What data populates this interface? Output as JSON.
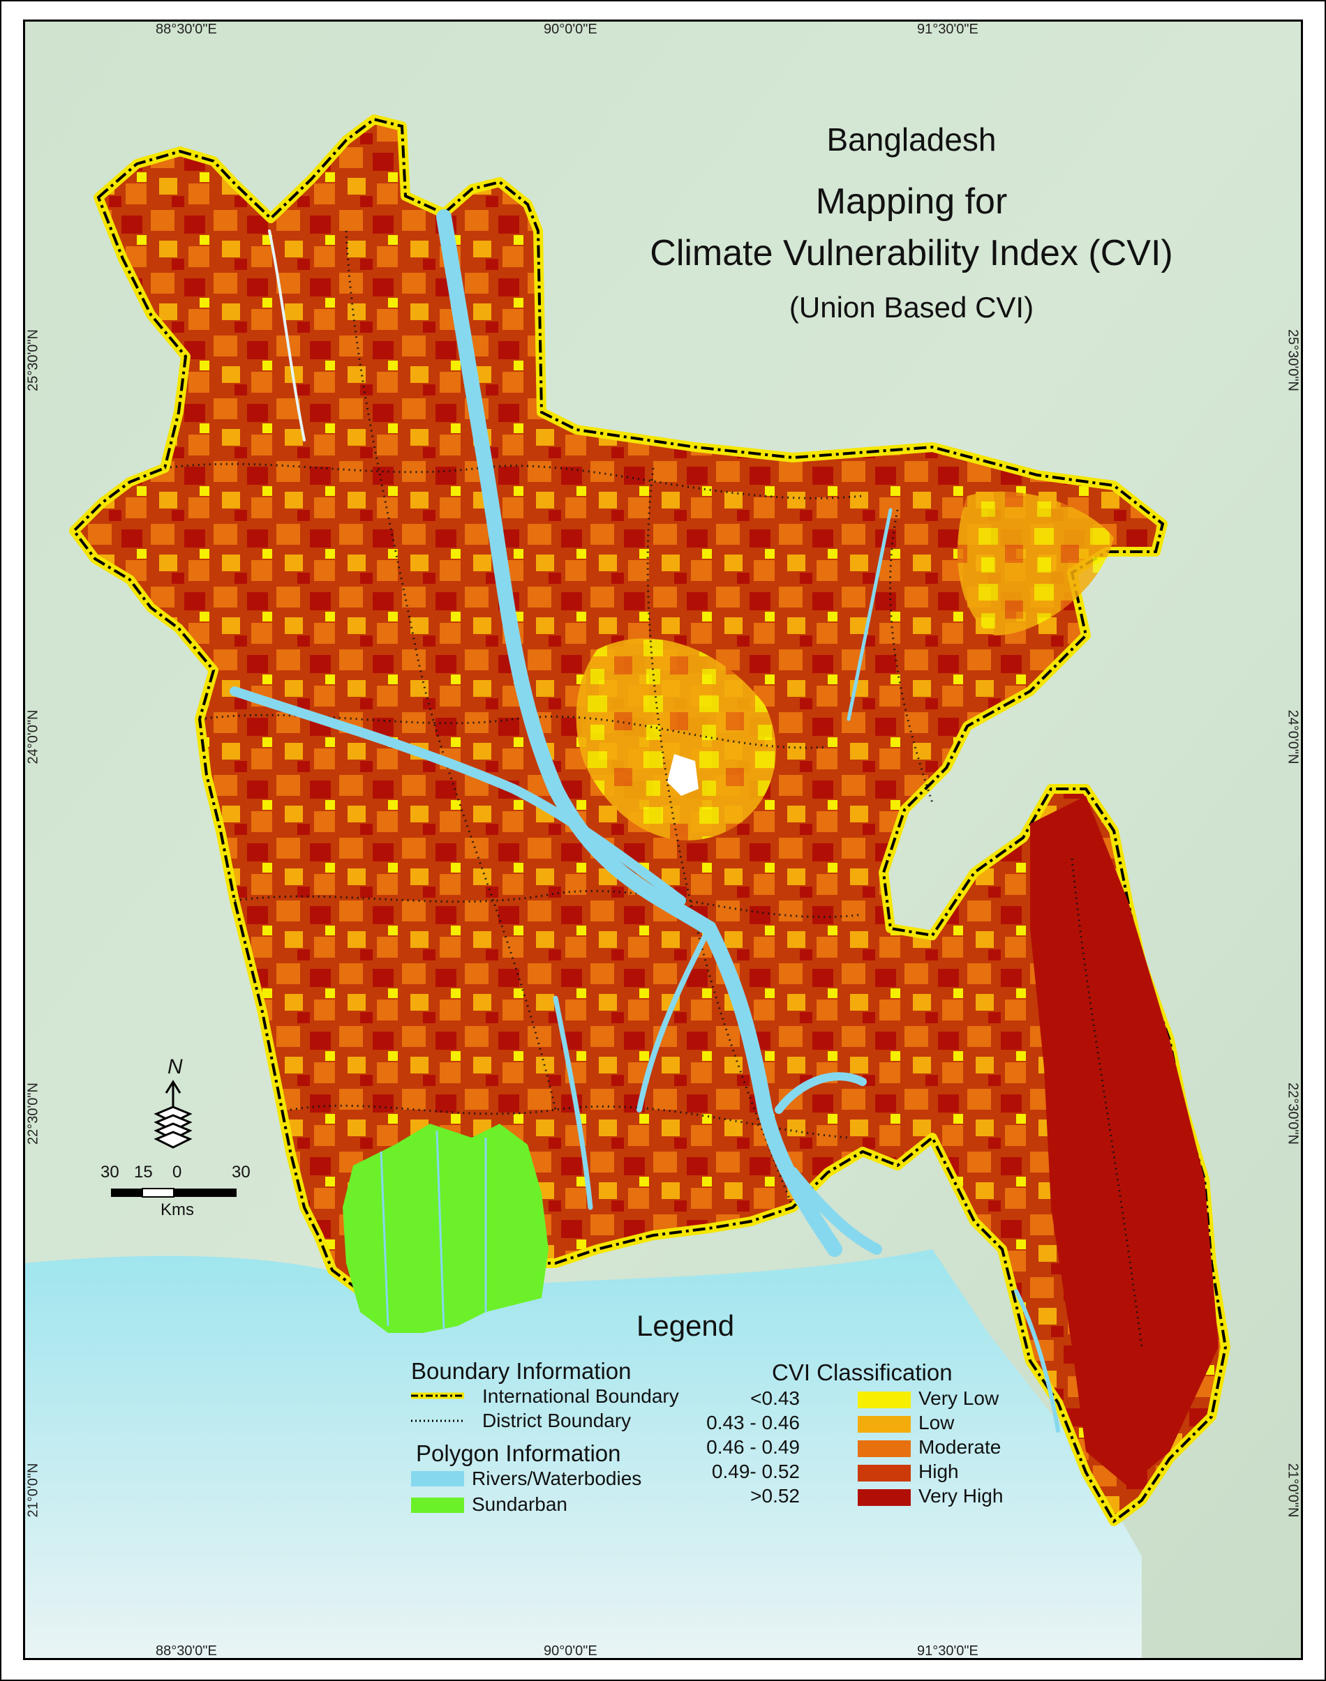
{
  "title": {
    "country": "Bangladesh",
    "line1": "Mapping for",
    "line2": "Climate Vulnerability Index (CVI)",
    "line3": "(Union Based CVI)"
  },
  "graticule": {
    "top": [
      "88°30'0\"E",
      "90°0'0\"E",
      "91°30'0\"E"
    ],
    "bottom": [
      "88°30'0\"E",
      "90°0'0\"E",
      "91°30'0\"E"
    ],
    "left": [
      "25°30'0\"N",
      "24°0'0\"N",
      "22°30'0\"N",
      "21°0'0\"N"
    ],
    "right": [
      "25°30'0\"N",
      "24°0'0\"N",
      "22°30'0\"N",
      "21°0'0\"N"
    ]
  },
  "north_arrow": {
    "label": "N"
  },
  "scale_bar": {
    "labels": [
      "30",
      "15",
      "0",
      "30"
    ],
    "unit": "Kms"
  },
  "legend": {
    "title": "Legend",
    "boundary": {
      "heading": "Boundary Information",
      "items": [
        {
          "label": "International Boundary",
          "color": "#f5e600"
        },
        {
          "label": "District Boundary",
          "color": "#000000"
        }
      ]
    },
    "polygon": {
      "heading": "Polygon Information",
      "items": [
        {
          "label": "Rivers/Waterbodies",
          "color": "#86d8ee"
        },
        {
          "label": "Sundarban",
          "color": "#6cf02a"
        }
      ]
    },
    "cvi": {
      "heading": "CVI Classification",
      "items": [
        {
          "range": "<0.43",
          "label": "Very Low",
          "color": "#f7ef00"
        },
        {
          "range": "0.43 - 0.46",
          "label": "Low",
          "color": "#f3ac0c"
        },
        {
          "range": "0.46 - 0.49",
          "label": "Moderate",
          "color": "#e7700f"
        },
        {
          "range": "0.49- 0.52",
          "label": "High",
          "color": "#cc3a08"
        },
        {
          "range": ">0.52",
          "label": "Very High",
          "color": "#b10f06"
        }
      ]
    }
  }
}
